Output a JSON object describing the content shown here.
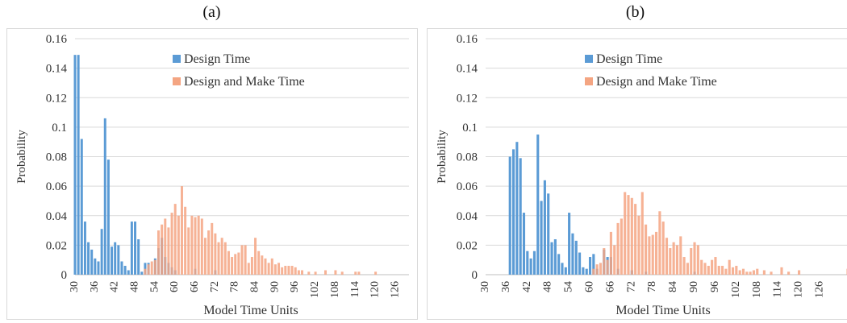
{
  "panels": [
    {
      "label": "(a)",
      "legend": [
        "Design Time",
        "Design and Make Time"
      ],
      "ylabel": "Probability",
      "xlabel": "Model Time Units"
    },
    {
      "label": "(b)",
      "legend": [
        "Design Time",
        "Design and Make Time"
      ],
      "ylabel": "Probability",
      "xlabel": "Model Time Units"
    }
  ],
  "colors": {
    "design": "#5b9bd5",
    "make": "#f4a582",
    "grid": "#d9d9d9",
    "axis": "#bfbfbf"
  },
  "chart_data": [
    {
      "type": "bar",
      "title": "(a)",
      "xlabel": "Model Time Units",
      "ylabel": "Probability",
      "ylim": [
        0,
        0.16
      ],
      "yticks": [
        "0",
        "0.02",
        "0.04",
        "0.06",
        "0.08",
        "0.1",
        "0.12",
        "0.14",
        "0.16"
      ],
      "xlim": [
        30,
        130
      ],
      "xticks": [
        "30",
        "36",
        "42",
        "48",
        "54",
        "60",
        "66",
        "72",
        "78",
        "84",
        "90",
        "96",
        "102",
        "108",
        "114",
        "120",
        "126"
      ],
      "grid": true,
      "legend_position": "top-center",
      "series": [
        {
          "name": "Design Time",
          "x": [
            30,
            31,
            32,
            33,
            34,
            35,
            36,
            37,
            38,
            39,
            40,
            41,
            42,
            43,
            44,
            45,
            46,
            47,
            48,
            49,
            50,
            51,
            52,
            54,
            55,
            56,
            57,
            58,
            59,
            60,
            66,
            72
          ],
          "values": [
            0.149,
            0.149,
            0.092,
            0.036,
            0.022,
            0.017,
            0.011,
            0.009,
            0.031,
            0.106,
            0.078,
            0.019,
            0.022,
            0.02,
            0.009,
            0.006,
            0.003,
            0.036,
            0.036,
            0.024,
            0.002,
            0.008,
            0.008,
            0.011,
            0.018,
            0.025,
            0.012,
            0.008,
            0.005,
            0.003,
            0.004,
            0.003
          ]
        },
        {
          "name": "Design and Make Time",
          "x": [
            51,
            52,
            53,
            54,
            55,
            56,
            57,
            58,
            59,
            60,
            61,
            62,
            63,
            64,
            65,
            66,
            67,
            68,
            69,
            70,
            71,
            72,
            73,
            74,
            75,
            76,
            77,
            78,
            79,
            80,
            81,
            82,
            83,
            84,
            85,
            86,
            87,
            88,
            89,
            90,
            91,
            92,
            93,
            94,
            95,
            96,
            97,
            98,
            100,
            102,
            105,
            108,
            110,
            114,
            115,
            120
          ],
          "values": [
            0.004,
            0.007,
            0.009,
            0.01,
            0.03,
            0.034,
            0.038,
            0.032,
            0.042,
            0.048,
            0.04,
            0.06,
            0.046,
            0.032,
            0.04,
            0.039,
            0.04,
            0.038,
            0.025,
            0.03,
            0.035,
            0.028,
            0.022,
            0.025,
            0.022,
            0.016,
            0.012,
            0.014,
            0.015,
            0.02,
            0.02,
            0.008,
            0.012,
            0.025,
            0.016,
            0.013,
            0.011,
            0.008,
            0.011,
            0.007,
            0.008,
            0.005,
            0.006,
            0.006,
            0.006,
            0.005,
            0.003,
            0.003,
            0.002,
            0.002,
            0.003,
            0.003,
            0.002,
            0.002,
            0.002,
            0.002
          ]
        }
      ]
    },
    {
      "type": "bar",
      "title": "(b)",
      "xlabel": "Model Time Units",
      "ylabel": "Probability",
      "ylim": [
        0,
        0.16
      ],
      "yticks": [
        "0",
        "0.02",
        "0.04",
        "0.06",
        "0.08",
        "0.1",
        "0.12",
        "0.14",
        "0.16"
      ],
      "xlim": [
        30,
        134
      ],
      "xticks": [
        "30",
        "36",
        "42",
        "48",
        "54",
        "60",
        "66",
        "72",
        "78",
        "84",
        "90",
        "96",
        "102",
        "108",
        "114",
        "120",
        "126"
      ],
      "grid": true,
      "legend_position": "top-center",
      "series": [
        {
          "name": "Design Time",
          "x": [
            37,
            38,
            39,
            40,
            41,
            42,
            43,
            44,
            45,
            46,
            47,
            48,
            49,
            50,
            51,
            52,
            53,
            54,
            55,
            56,
            57,
            58,
            59,
            60,
            61,
            62,
            64,
            65,
            66,
            68,
            72,
            76,
            90
          ],
          "values": [
            0.08,
            0.085,
            0.09,
            0.079,
            0.042,
            0.016,
            0.011,
            0.016,
            0.095,
            0.05,
            0.064,
            0.055,
            0.022,
            0.024,
            0.014,
            0.008,
            0.005,
            0.042,
            0.028,
            0.023,
            0.015,
            0.005,
            0.004,
            0.012,
            0.014,
            0.004,
            0.017,
            0.012,
            0.012,
            0.004,
            0.003,
            0.002,
            0.002
          ]
        },
        {
          "name": "Design and Make Time",
          "x": [
            61,
            62,
            63,
            64,
            65,
            66,
            67,
            68,
            69,
            70,
            71,
            72,
            73,
            74,
            75,
            76,
            77,
            78,
            79,
            80,
            81,
            82,
            83,
            84,
            85,
            86,
            87,
            88,
            89,
            90,
            91,
            92,
            93,
            94,
            95,
            96,
            97,
            98,
            99,
            100,
            101,
            102,
            103,
            104,
            105,
            106,
            107,
            108,
            110,
            112,
            115,
            117,
            120,
            134
          ],
          "values": [
            0.004,
            0.007,
            0.008,
            0.018,
            0.01,
            0.029,
            0.02,
            0.035,
            0.038,
            0.056,
            0.054,
            0.052,
            0.048,
            0.04,
            0.056,
            0.034,
            0.026,
            0.027,
            0.029,
            0.043,
            0.036,
            0.025,
            0.018,
            0.022,
            0.02,
            0.026,
            0.012,
            0.008,
            0.018,
            0.022,
            0.02,
            0.01,
            0.008,
            0.006,
            0.01,
            0.012,
            0.006,
            0.006,
            0.004,
            0.01,
            0.005,
            0.006,
            0.003,
            0.004,
            0.002,
            0.002,
            0.003,
            0.004,
            0.003,
            0.002,
            0.005,
            0.002,
            0.003,
            0.004
          ]
        }
      ]
    }
  ]
}
